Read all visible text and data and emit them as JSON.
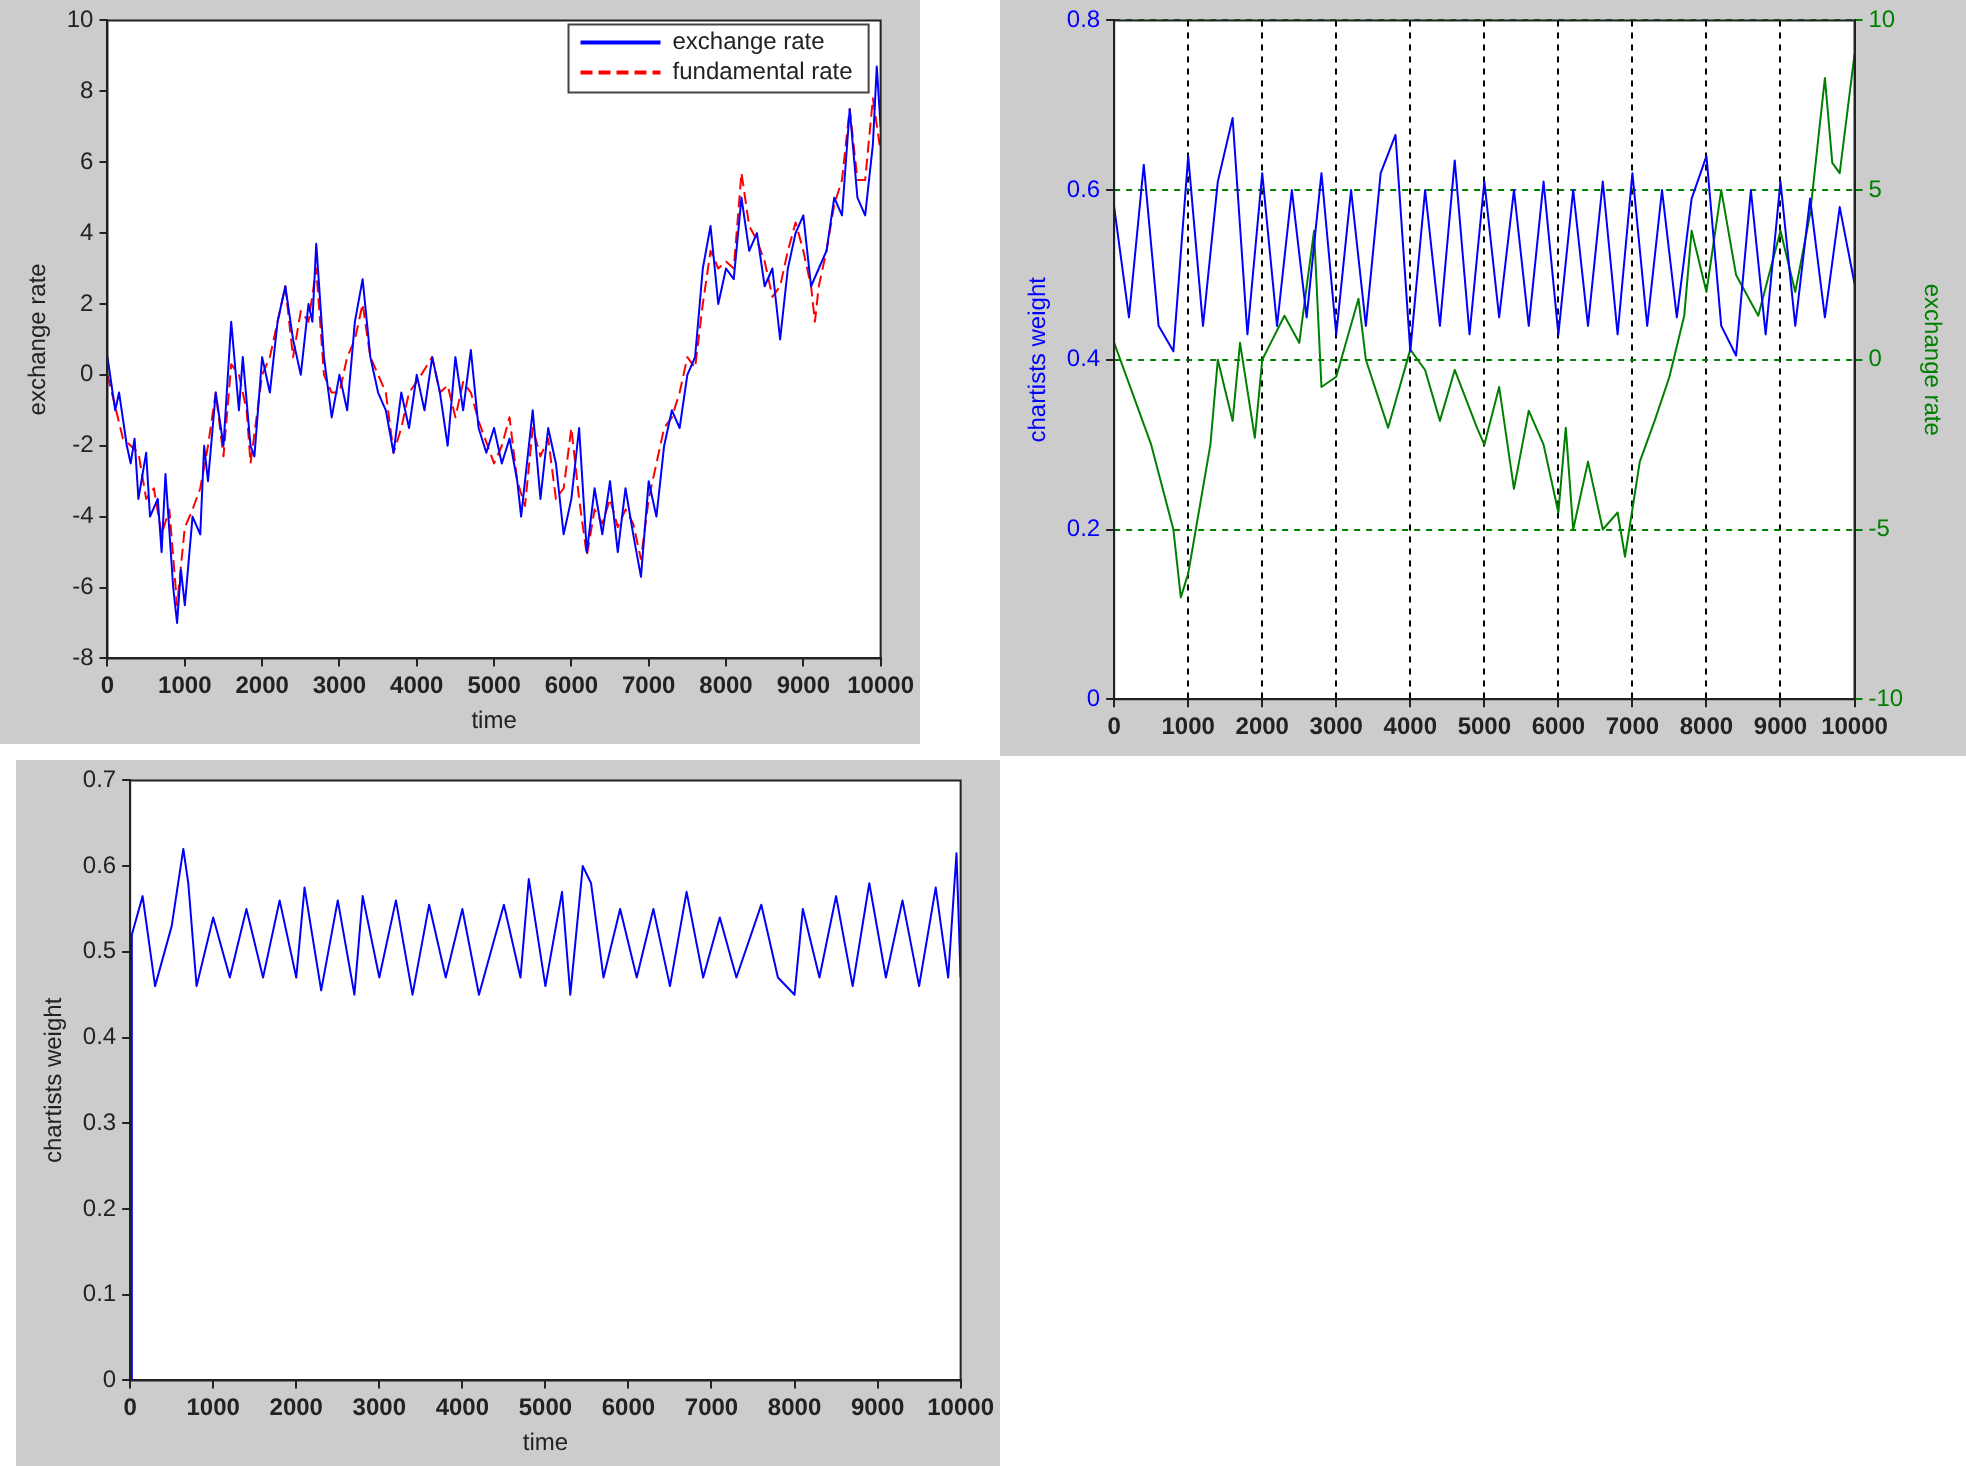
{
  "chart_data": [
    {
      "type": "line",
      "xlabel": "time",
      "ylabel": "exchange rate",
      "xlim": [
        0,
        10000
      ],
      "xticks": [
        0,
        1000,
        2000,
        3000,
        4000,
        5000,
        6000,
        7000,
        8000,
        9000,
        10000
      ],
      "ylim": [
        -8,
        10
      ],
      "yticks": [
        -8,
        -6,
        -4,
        -2,
        0,
        2,
        4,
        6,
        8,
        10
      ],
      "grid": false,
      "legend": "top right",
      "marker": "none",
      "series": [
        {
          "name": "exchange rate",
          "color": "#0000ff",
          "line_style": "solid",
          "x": [
            0,
            100,
            150,
            250,
            300,
            350,
            400,
            500,
            550,
            650,
            700,
            750,
            850,
            900,
            950,
            1000,
            1100,
            1200,
            1250,
            1300,
            1400,
            1500,
            1600,
            1700,
            1750,
            1850,
            1900,
            2000,
            2100,
            2200,
            2300,
            2400,
            2500,
            2600,
            2650,
            2700,
            2800,
            2900,
            3000,
            3100,
            3200,
            3300,
            3400,
            3500,
            3600,
            3700,
            3800,
            3900,
            4000,
            4100,
            4200,
            4300,
            4400,
            4500,
            4600,
            4700,
            4800,
            4900,
            5000,
            5100,
            5200,
            5300,
            5350,
            5500,
            5600,
            5700,
            5800,
            5900,
            6000,
            6100,
            6200,
            6300,
            6400,
            6500,
            6600,
            6700,
            6800,
            6900,
            7000,
            7100,
            7200,
            7300,
            7400,
            7500,
            7600,
            7700,
            7800,
            7900,
            8000,
            8100,
            8200,
            8300,
            8400,
            8500,
            8600,
            8700,
            8800,
            8900,
            9000,
            9100,
            9200,
            9300,
            9400,
            9500,
            9600,
            9700,
            9800,
            9900,
            9950,
            10000
          ],
          "values": [
            0.5,
            -1,
            -0.5,
            -2,
            -2.5,
            -1.8,
            -3.5,
            -2.2,
            -4,
            -3.5,
            -5,
            -2.8,
            -6,
            -7,
            -5.5,
            -6.5,
            -4,
            -4.5,
            -2,
            -3,
            -0.5,
            -2,
            1.5,
            -1,
            0.5,
            -2,
            -2.3,
            0.5,
            -0.5,
            1.5,
            2.5,
            1,
            0,
            2,
            1.5,
            3.7,
            0.5,
            -1.2,
            0,
            -1,
            1.5,
            2.7,
            0.5,
            -0.5,
            -1,
            -2.2,
            -0.5,
            -1.5,
            0,
            -1,
            0.5,
            -0.5,
            -2,
            0.5,
            -1,
            0.7,
            -1.5,
            -2.2,
            -1.5,
            -2.5,
            -1.8,
            -3,
            -4,
            -1,
            -3.5,
            -1.5,
            -2.5,
            -4.5,
            -3.5,
            -1.5,
            -5,
            -3.2,
            -4.5,
            -3,
            -5,
            -3.2,
            -4.5,
            -5.7,
            -3,
            -4,
            -2,
            -1,
            -1.5,
            0,
            0.5,
            3,
            4.2,
            2,
            3,
            2.7,
            5,
            3.5,
            4,
            2.5,
            3,
            1,
            3,
            4,
            4.5,
            2.5,
            3,
            3.5,
            5,
            4.5,
            7.5,
            5,
            4.5,
            6.5,
            8.7,
            7
          ]
        },
        {
          "name": "fundamental rate",
          "color": "#ff0000",
          "line_style": "dashed",
          "x": [
            0,
            200,
            400,
            500,
            600,
            700,
            800,
            900,
            1000,
            1100,
            1200,
            1300,
            1400,
            1500,
            1600,
            1700,
            1800,
            1850,
            2000,
            2100,
            2300,
            2400,
            2500,
            2600,
            2700,
            2800,
            2900,
            3000,
            3100,
            3200,
            3300,
            3400,
            3600,
            3700,
            3800,
            3900,
            4000,
            4200,
            4300,
            4400,
            4500,
            4600,
            4700,
            4800,
            5000,
            5100,
            5200,
            5300,
            5400,
            5500,
            5600,
            5700,
            5800,
            5900,
            6000,
            6100,
            6200,
            6300,
            6400,
            6500,
            6600,
            6700,
            6800,
            6900,
            7000,
            7100,
            7200,
            7300,
            7400,
            7500,
            7600,
            7700,
            7800,
            7900,
            8000,
            8100,
            8200,
            8300,
            8400,
            8500,
            8600,
            8700,
            8800,
            8900,
            9000,
            9100,
            9150,
            9200,
            9300,
            9400,
            9500,
            9600,
            9700,
            9800,
            9900,
            10000
          ],
          "values": [
            0,
            -1.8,
            -2.2,
            -3.5,
            -3.2,
            -4.5,
            -3.8,
            -6.5,
            -4.3,
            -3.8,
            -3.2,
            -2,
            -0.5,
            -2.3,
            0.3,
            0,
            -1,
            -2.5,
            0,
            0.5,
            2.5,
            0.5,
            1.8,
            1.5,
            3,
            0,
            -0.5,
            -0.5,
            0.5,
            1,
            2,
            0.5,
            -0.5,
            -2.2,
            -1.5,
            -0.5,
            -0.2,
            0.5,
            -0.5,
            -0.3,
            -1.2,
            -0.2,
            -0.5,
            -1.3,
            -2.5,
            -2,
            -1.2,
            -3,
            -3.7,
            -1.5,
            -2.3,
            -1.8,
            -3.5,
            -3.2,
            -1.5,
            -3.5,
            -5.1,
            -3.8,
            -4.2,
            -3.5,
            -4.3,
            -3.8,
            -4.2,
            -5.2,
            -3.5,
            -2.5,
            -1.5,
            -1.2,
            -0.5,
            0.5,
            0.2,
            2,
            3.5,
            3,
            3.2,
            3,
            5.7,
            4.2,
            3.8,
            3.2,
            2.2,
            2.5,
            3.5,
            4.3,
            3.5,
            2.5,
            1.5,
            2.5,
            3.5,
            4.8,
            5.5,
            7.5,
            5.5,
            5.5,
            7.8,
            6.3
          ]
        }
      ]
    },
    {
      "type": "line",
      "ylabel": "chartists weight",
      "y2label": "exchange rate",
      "xlim": [
        0,
        10000
      ],
      "xticks": [
        0,
        1000,
        2000,
        3000,
        4000,
        5000,
        6000,
        7000,
        8000,
        9000,
        10000
      ],
      "ylim": [
        0,
        0.8
      ],
      "yticks": [
        0,
        0.2,
        0.4,
        0.6,
        0.8
      ],
      "y2lim": [
        -10,
        10
      ],
      "y2ticks": [
        -10,
        -5,
        0,
        5,
        10
      ],
      "grid": true,
      "marker": "none",
      "series": [
        {
          "color": "#0000ff",
          "axis": "y",
          "x": [
            0,
            200,
            400,
            600,
            800,
            1000,
            1200,
            1400,
            1600,
            1800,
            2000,
            2200,
            2400,
            2600,
            2800,
            3000,
            3200,
            3400,
            3600,
            3800,
            4000,
            4200,
            4400,
            4600,
            4800,
            5000,
            5200,
            5400,
            5600,
            5800,
            6000,
            6200,
            6400,
            6600,
            6800,
            7000,
            7200,
            7400,
            7600,
            7800,
            8000,
            8200,
            8400,
            8600,
            8800,
            9000,
            9200,
            9400,
            9600,
            9800,
            10000
          ],
          "values": [
            0.58,
            0.45,
            0.63,
            0.44,
            0.41,
            0.64,
            0.44,
            0.61,
            0.685,
            0.43,
            0.62,
            0.44,
            0.6,
            0.45,
            0.62,
            0.43,
            0.6,
            0.44,
            0.62,
            0.665,
            0.41,
            0.6,
            0.44,
            0.635,
            0.43,
            0.61,
            0.45,
            0.6,
            0.44,
            0.61,
            0.43,
            0.6,
            0.44,
            0.61,
            0.43,
            0.62,
            0.44,
            0.6,
            0.45,
            0.59,
            0.64,
            0.44,
            0.405,
            0.6,
            0.43,
            0.61,
            0.44,
            0.59,
            0.45,
            0.58,
            0.49
          ]
        },
        {
          "color": "#008000",
          "axis": "y2",
          "x": [
            0,
            500,
            800,
            900,
            1000,
            1300,
            1400,
            1600,
            1700,
            1900,
            2000,
            2300,
            2500,
            2700,
            2800,
            3000,
            3300,
            3400,
            3700,
            4000,
            4200,
            4400,
            4600,
            4900,
            5000,
            5200,
            5400,
            5600,
            5800,
            6000,
            6100,
            6200,
            6400,
            6600,
            6800,
            6900,
            7100,
            7300,
            7500,
            7700,
            7800,
            8000,
            8200,
            8400,
            8700,
            9000,
            9200,
            9400,
            9600,
            9700,
            9800,
            10000
          ],
          "values": [
            0.5,
            -2.5,
            -5,
            -7,
            -6.3,
            -2.5,
            0,
            -1.8,
            0.5,
            -2.3,
            0,
            1.3,
            0.5,
            3.8,
            -0.8,
            -0.5,
            1.8,
            0,
            -2,
            0.3,
            -0.3,
            -1.8,
            -0.3,
            -2,
            -2.5,
            -0.8,
            -3.8,
            -1.5,
            -2.5,
            -4.5,
            -2,
            -5,
            -3,
            -5,
            -4.5,
            -5.8,
            -3,
            -1.8,
            -0.5,
            1.3,
            3.8,
            2,
            5,
            2.5,
            1.3,
            3.8,
            2,
            4.3,
            8.3,
            5.8,
            5.5,
            9
          ]
        }
      ]
    },
    {
      "type": "line",
      "xlabel": "time",
      "ylabel": "chartists weight",
      "xlim": [
        0,
        10000
      ],
      "xticks": [
        0,
        1000,
        2000,
        3000,
        4000,
        5000,
        6000,
        7000,
        8000,
        9000,
        10000
      ],
      "ylim": [
        0,
        0.7
      ],
      "yticks": [
        0,
        0.1,
        0.2,
        0.3,
        0.4,
        0.5,
        0.6,
        0.7
      ],
      "grid": false,
      "marker": "none",
      "series": [
        {
          "color": "#0000ff",
          "x": [
            0,
            20,
            150,
            300,
            500,
            640,
            700,
            800,
            1000,
            1200,
            1400,
            1600,
            1800,
            2000,
            2100,
            2300,
            2500,
            2700,
            2800,
            3000,
            3200,
            3400,
            3600,
            3800,
            4000,
            4200,
            4500,
            4700,
            4800,
            5000,
            5200,
            5300,
            5450,
            5550,
            5700,
            5900,
            6100,
            6300,
            6500,
            6700,
            6900,
            7100,
            7300,
            7600,
            7800,
            8000,
            8100,
            8300,
            8500,
            8700,
            8900,
            9100,
            9300,
            9500,
            9700,
            9850,
            9950,
            10000
          ],
          "values": [
            0,
            0.52,
            0.565,
            0.46,
            0.53,
            0.62,
            0.58,
            0.46,
            0.54,
            0.47,
            0.55,
            0.47,
            0.56,
            0.47,
            0.575,
            0.455,
            0.56,
            0.45,
            0.565,
            0.47,
            0.56,
            0.45,
            0.555,
            0.47,
            0.55,
            0.45,
            0.555,
            0.47,
            0.585,
            0.46,
            0.57,
            0.45,
            0.6,
            0.58,
            0.47,
            0.55,
            0.47,
            0.55,
            0.46,
            0.57,
            0.47,
            0.54,
            0.47,
            0.555,
            0.47,
            0.45,
            0.55,
            0.47,
            0.565,
            0.46,
            0.58,
            0.47,
            0.56,
            0.46,
            0.575,
            0.47,
            0.615,
            0.47
          ]
        }
      ]
    }
  ]
}
